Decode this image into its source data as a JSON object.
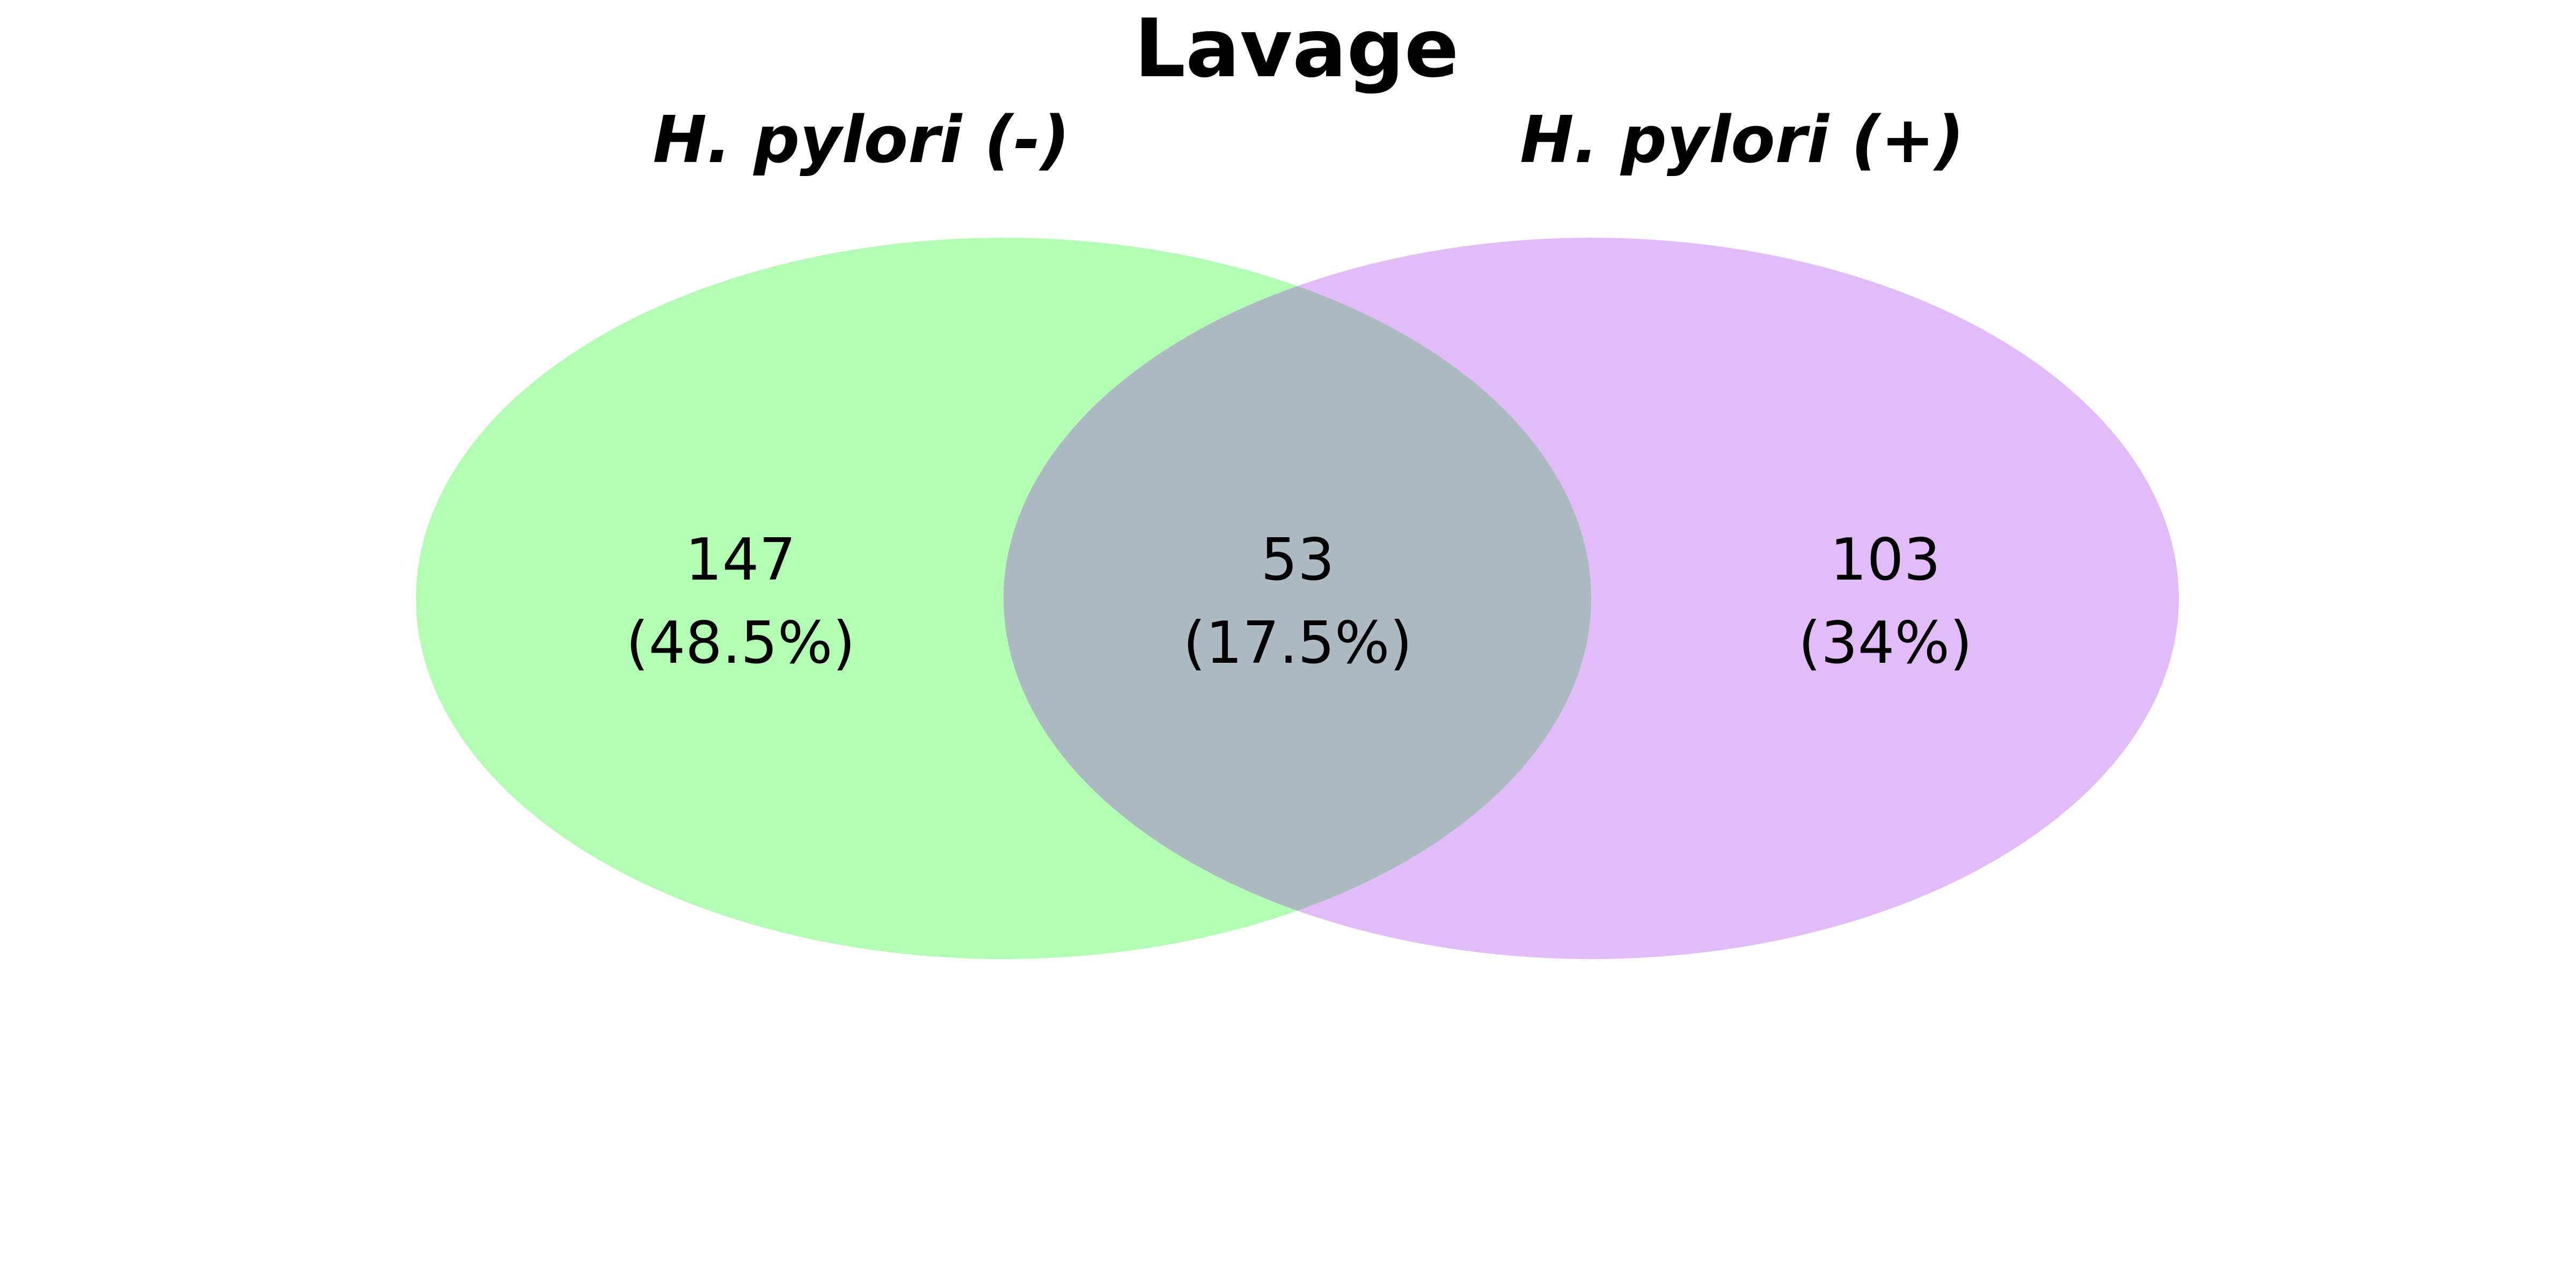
{
  "title": "Lavage",
  "sets": [
    {
      "name": "H. pylori (-)",
      "color": "#b3fcb3"
    },
    {
      "name": "H. pylori (+)",
      "color": "#e1bcf8"
    }
  ],
  "overlap_color": "#adbac2",
  "regions": {
    "left_only": {
      "count": "147",
      "percent": "(48.5%)"
    },
    "both": {
      "count": "53",
      "percent": "(17.5%)"
    },
    "right_only": {
      "count": "103",
      "percent": "(34%)"
    }
  }
}
